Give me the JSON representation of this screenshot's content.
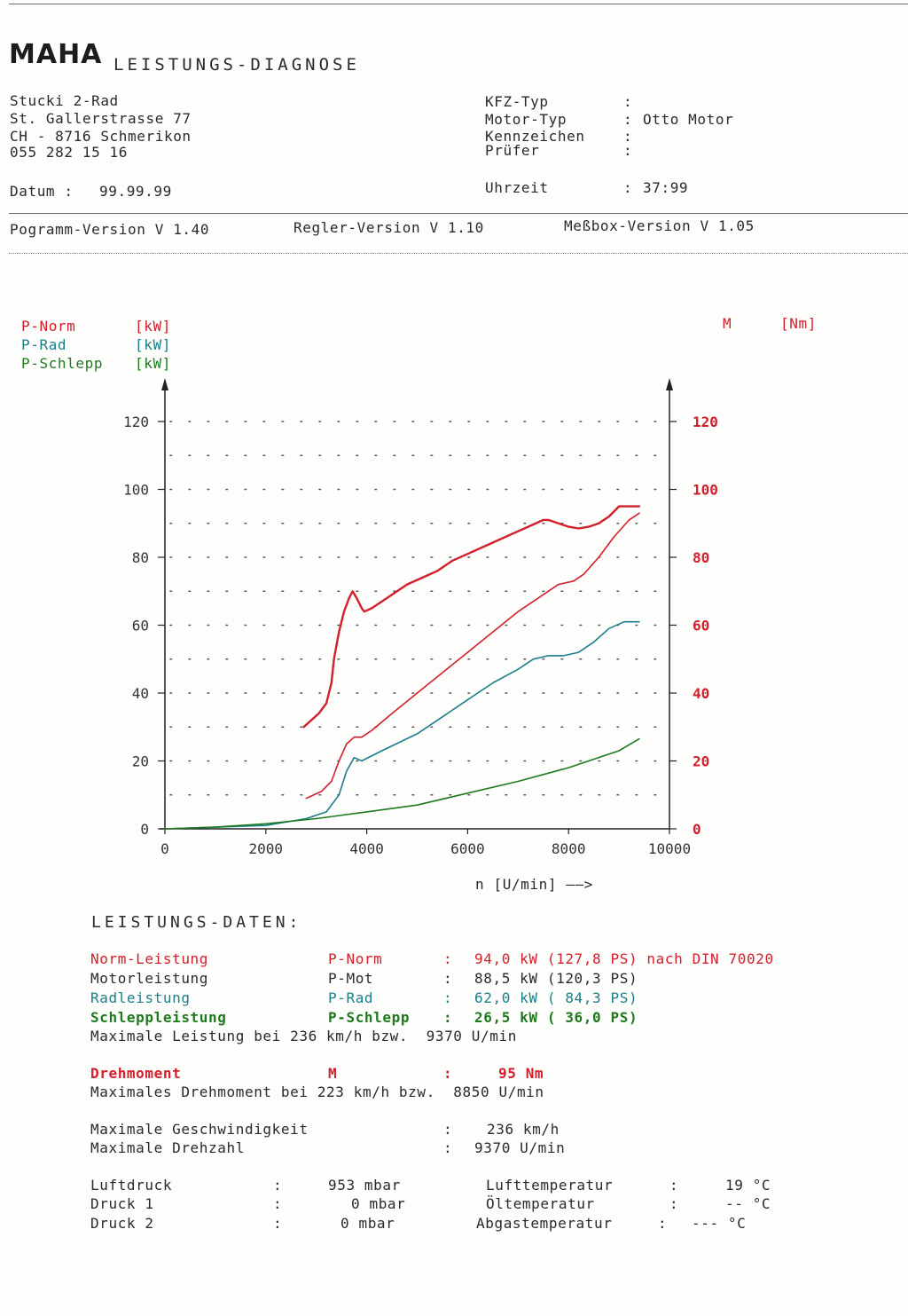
{
  "header": {
    "logo": "MAHA",
    "title": "LEISTUNGS-DIAGNOSE",
    "address": [
      "Stucki 2-Rad",
      "St. Gallerstrasse 77",
      "CH - 8716 Schmerikon",
      "055 282 15 16"
    ],
    "datum_label": "Datum :",
    "datum_value": "99.99.99",
    "fields": [
      {
        "label": "KFZ-Typ",
        "sep": ":",
        "value": ""
      },
      {
        "label": "Motor-Typ",
        "sep": ":",
        "value": "Otto Motor"
      },
      {
        "label": "Kennzeichen",
        "sep": ":",
        "value": ""
      },
      {
        "label": "Prüfer",
        "sep": ":",
        "value": ""
      }
    ],
    "uhrzeit_label": "Uhrzeit",
    "uhrzeit_sep": ":",
    "uhrzeit_value": "37:99",
    "versions": [
      "Pogramm-Version V 1.40",
      "Regler-Version V 1.10",
      "Meßbox-Version V 1.05"
    ]
  },
  "chart_legend": {
    "left": [
      {
        "name": "P-Norm",
        "unit": "[kW]",
        "color": "#d21f2c"
      },
      {
        "name": "P-Rad",
        "unit": "[kW]",
        "color": "#1a7f8a"
      },
      {
        "name": "P-Schlepp",
        "unit": "[kW]",
        "color": "#1f7a1f"
      }
    ],
    "right": {
      "name": "M",
      "unit": "[Nm]",
      "color": "#d21f2c"
    }
  },
  "chart_data": {
    "type": "line",
    "xlabel": "n [U/min] ——>",
    "xlim": [
      0,
      10000
    ],
    "x_ticks": [
      0,
      2000,
      4000,
      6000,
      8000,
      10000
    ],
    "ylim": [
      0,
      130
    ],
    "y_ticks": [
      0,
      20,
      40,
      60,
      80,
      100,
      120
    ],
    "y2lim": [
      0,
      130
    ],
    "y2_ticks": [
      0,
      20,
      40,
      60,
      80,
      100,
      120
    ],
    "grid": true,
    "series": [
      {
        "name": "M",
        "axis": "right",
        "color": "#d21f2c",
        "points": [
          [
            2750,
            30
          ],
          [
            2900,
            32
          ],
          [
            3050,
            34
          ],
          [
            3200,
            37
          ],
          [
            3300,
            43
          ],
          [
            3350,
            50
          ],
          [
            3450,
            58
          ],
          [
            3550,
            64
          ],
          [
            3650,
            68
          ],
          [
            3720,
            70
          ],
          [
            3800,
            68
          ],
          [
            3900,
            65
          ],
          [
            3950,
            64
          ],
          [
            4100,
            65
          ],
          [
            4300,
            67
          ],
          [
            4500,
            69
          ],
          [
            4800,
            72
          ],
          [
            5100,
            74
          ],
          [
            5400,
            76
          ],
          [
            5700,
            79
          ],
          [
            6000,
            81
          ],
          [
            6300,
            83
          ],
          [
            6600,
            85
          ],
          [
            6900,
            87
          ],
          [
            7200,
            89
          ],
          [
            7500,
            91
          ],
          [
            7600,
            91
          ],
          [
            7800,
            90
          ],
          [
            8000,
            89
          ],
          [
            8200,
            88.5
          ],
          [
            8400,
            89
          ],
          [
            8600,
            90
          ],
          [
            8800,
            92
          ],
          [
            9000,
            95
          ],
          [
            9400,
            95
          ]
        ]
      },
      {
        "name": "P-Norm",
        "axis": "left",
        "color": "#d21f2c",
        "points": [
          [
            2800,
            9
          ],
          [
            3100,
            11
          ],
          [
            3300,
            14
          ],
          [
            3450,
            20
          ],
          [
            3600,
            25
          ],
          [
            3750,
            27
          ],
          [
            3900,
            27
          ],
          [
            4100,
            29
          ],
          [
            4500,
            34
          ],
          [
            5000,
            40
          ],
          [
            5500,
            46
          ],
          [
            6000,
            52
          ],
          [
            6500,
            58
          ],
          [
            7000,
            64
          ],
          [
            7500,
            69
          ],
          [
            7800,
            72
          ],
          [
            8100,
            73
          ],
          [
            8300,
            75
          ],
          [
            8600,
            80
          ],
          [
            8900,
            86
          ],
          [
            9200,
            91
          ],
          [
            9400,
            93
          ]
        ]
      },
      {
        "name": "P-Rad",
        "axis": "left",
        "color": "#1a7f8a",
        "points": [
          [
            0,
            0
          ],
          [
            2000,
            1
          ],
          [
            2800,
            3
          ],
          [
            3200,
            5
          ],
          [
            3450,
            10
          ],
          [
            3600,
            17
          ],
          [
            3750,
            21
          ],
          [
            3900,
            20
          ],
          [
            4300,
            23
          ],
          [
            5000,
            28
          ],
          [
            5500,
            33
          ],
          [
            6000,
            38
          ],
          [
            6500,
            43
          ],
          [
            7000,
            47
          ],
          [
            7300,
            50
          ],
          [
            7600,
            51
          ],
          [
            7900,
            51
          ],
          [
            8200,
            52
          ],
          [
            8500,
            55
          ],
          [
            8800,
            59
          ],
          [
            9100,
            61
          ],
          [
            9400,
            61
          ]
        ]
      },
      {
        "name": "P-Schlepp",
        "axis": "left",
        "color": "#1f7a1f",
        "points": [
          [
            0,
            0
          ],
          [
            1000,
            0.5
          ],
          [
            2000,
            1.5
          ],
          [
            3000,
            3
          ],
          [
            4000,
            5
          ],
          [
            5000,
            7
          ],
          [
            6000,
            10.5
          ],
          [
            7000,
            14
          ],
          [
            8000,
            18
          ],
          [
            9000,
            23
          ],
          [
            9400,
            26.5
          ]
        ]
      }
    ]
  },
  "performance": {
    "heading": "LEISTUNGS-DATEN:",
    "rows": [
      {
        "label": "Norm-Leistung",
        "code": "P-Norm",
        "sep": ":",
        "value": "94,0 kW (127,8 PS) nach DIN 70020",
        "style": "red"
      },
      {
        "label": "Motorleistung",
        "code": "P-Mot",
        "sep": ":",
        "value": "88,5 kW (120,3 PS)",
        "style": "black"
      },
      {
        "label": "Radleistung",
        "code": "P-Rad",
        "sep": ":",
        "value": "62,0 kW ( 84,3 PS)",
        "style": "teal"
      },
      {
        "label": "Schleppleistung",
        "code": "P-Schlepp",
        "sep": ":",
        "value": "26,5 kW ( 36,0 PS)",
        "style": "green"
      }
    ],
    "max_power_text": "Maximale Leistung bei 236 km/h bzw.  9370 U/min",
    "torque": {
      "label": "Drehmoment",
      "code": "M",
      "sep": ":",
      "value": "95 Nm"
    },
    "max_torque_text": "Maximales Drehmoment bei 223 km/h bzw.  8850 U/min",
    "max_speed": {
      "label": "Maximale Geschwindigkeit",
      "sep": ":",
      "value": "236 km/h"
    },
    "max_rpm": {
      "label": "Maximale Drehzahl",
      "sep": ":",
      "value": "9370 U/min"
    }
  },
  "environment": [
    {
      "label": "Luftdruck",
      "sep": ":",
      "value": "953 mbar",
      "label2": "Lufttemperatur",
      "sep2": ":",
      "value2": "19 °C"
    },
    {
      "label": "Druck 1",
      "sep": ":",
      "value": "0 mbar",
      "label2": "Öltemperatur",
      "sep2": ":",
      "value2": "-- °C"
    },
    {
      "label": "Druck 2",
      "sep": ":",
      "value": "0 mbar",
      "label2": "Abgastemperatur",
      "sep2": ":",
      "value2": "--- °C"
    }
  ]
}
